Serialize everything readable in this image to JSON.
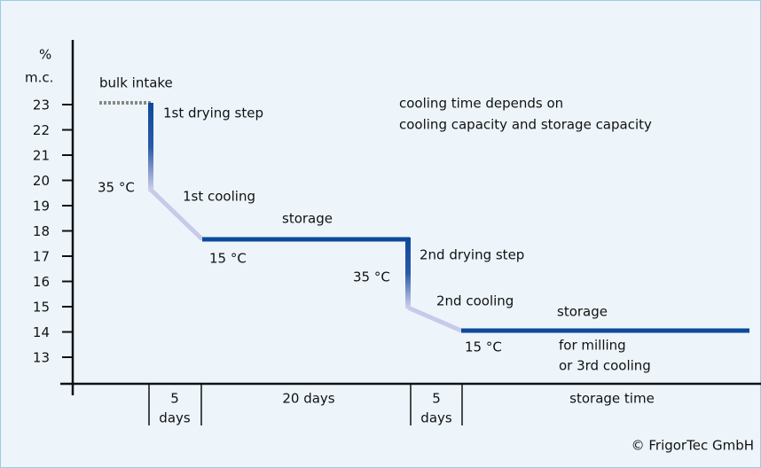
{
  "y_axis": {
    "unit": "%",
    "label": "m.c.",
    "ticks": [
      "23",
      "22",
      "21",
      "20",
      "19",
      "18",
      "17",
      "16",
      "15",
      "14",
      "13"
    ]
  },
  "annotations": {
    "bulk_intake": "bulk intake",
    "drying_1": "1st drying step",
    "temp_1": "35 °C",
    "cooling_1": "1st cooling",
    "storage_1": "storage",
    "temp_2": "15 °C",
    "temp_3": "35 °C",
    "drying_2": "2nd drying step",
    "cooling_2": "2nd cooling",
    "storage_2": "storage",
    "temp_4": "15 °C",
    "note_line1": "cooling time depends on",
    "note_line2": "cooling capacity and storage capacity",
    "use_line1": "for milling",
    "use_line2": "or 3rd cooling"
  },
  "x_axis": {
    "seg1_a": "5",
    "seg1_b": "days",
    "seg2": "20 days",
    "seg3_a": "5",
    "seg3_b": "days",
    "label": "storage time"
  },
  "copyright": "© FrigorTec GmbH"
}
